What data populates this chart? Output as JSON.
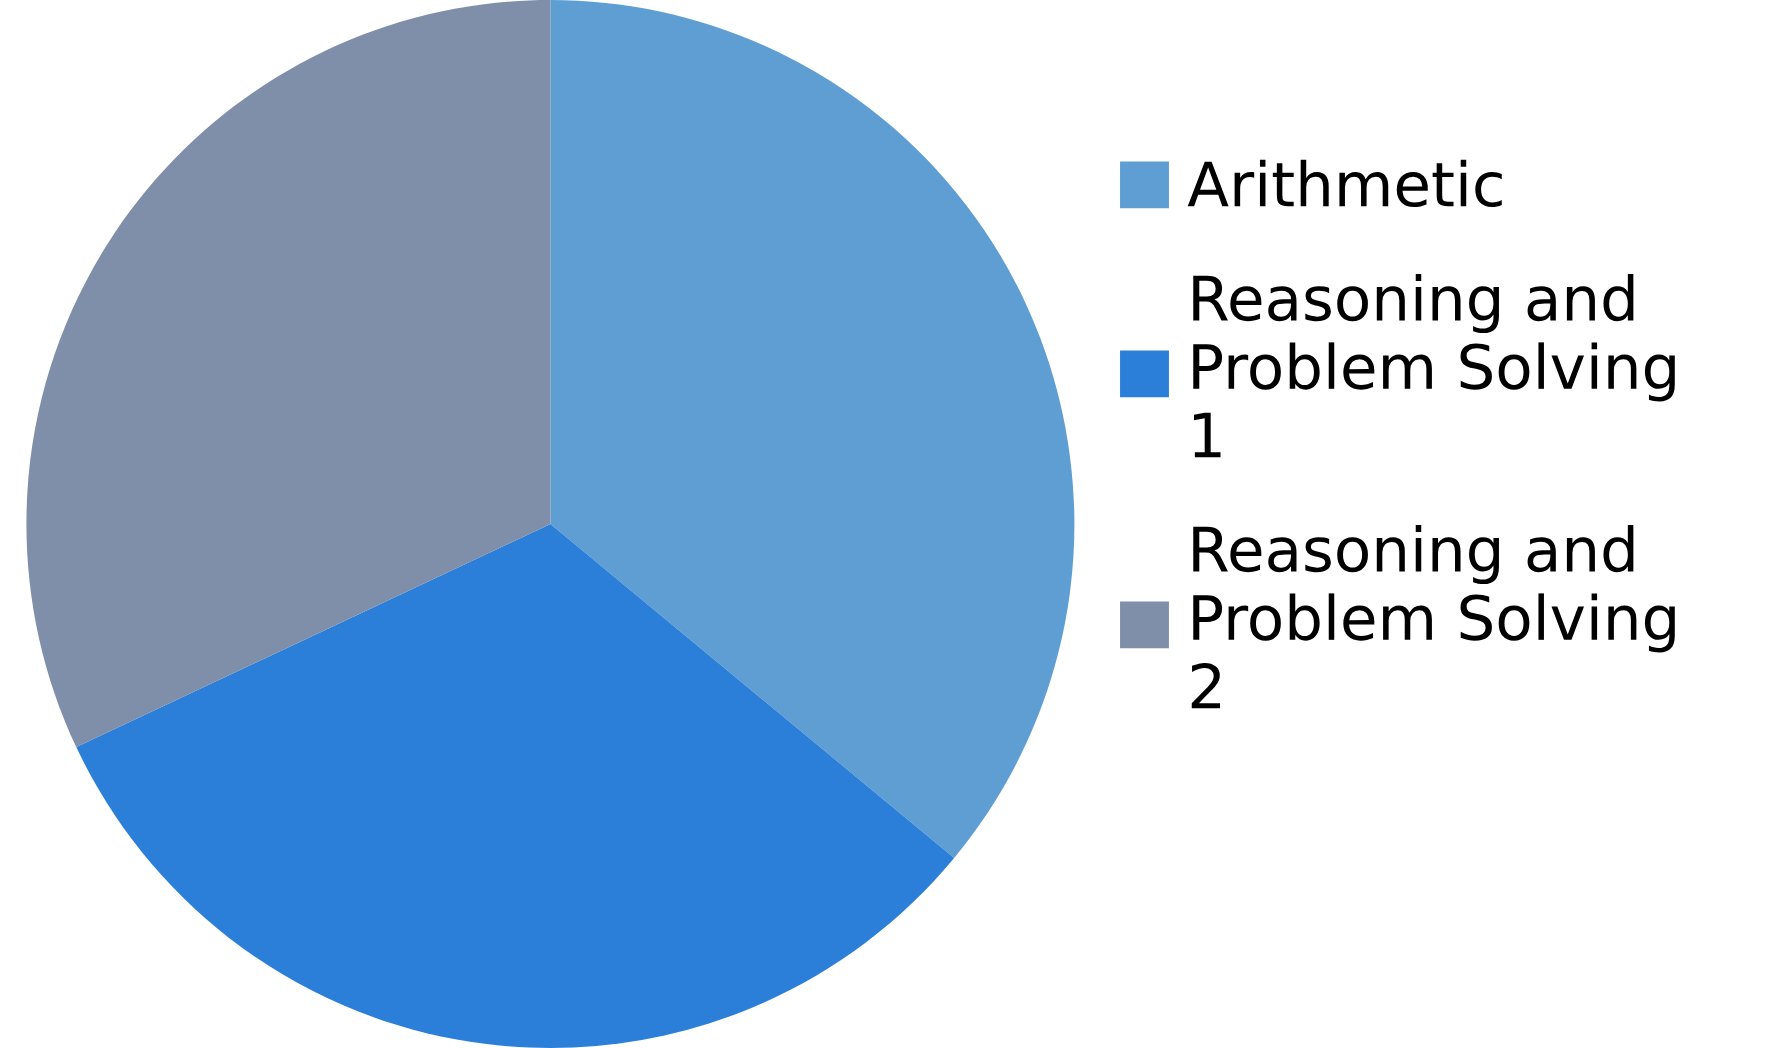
{
  "chart_data": {
    "type": "pie",
    "categories": [
      "Arithmetic",
      "Reasoning and Problem Solving 1",
      "Reasoning and Problem Solving 2"
    ],
    "values": [
      36,
      32,
      32
    ],
    "colors": [
      "#5f9ed3",
      "#2b7fd8",
      "#7f8ea9"
    ],
    "legend": "right"
  }
}
